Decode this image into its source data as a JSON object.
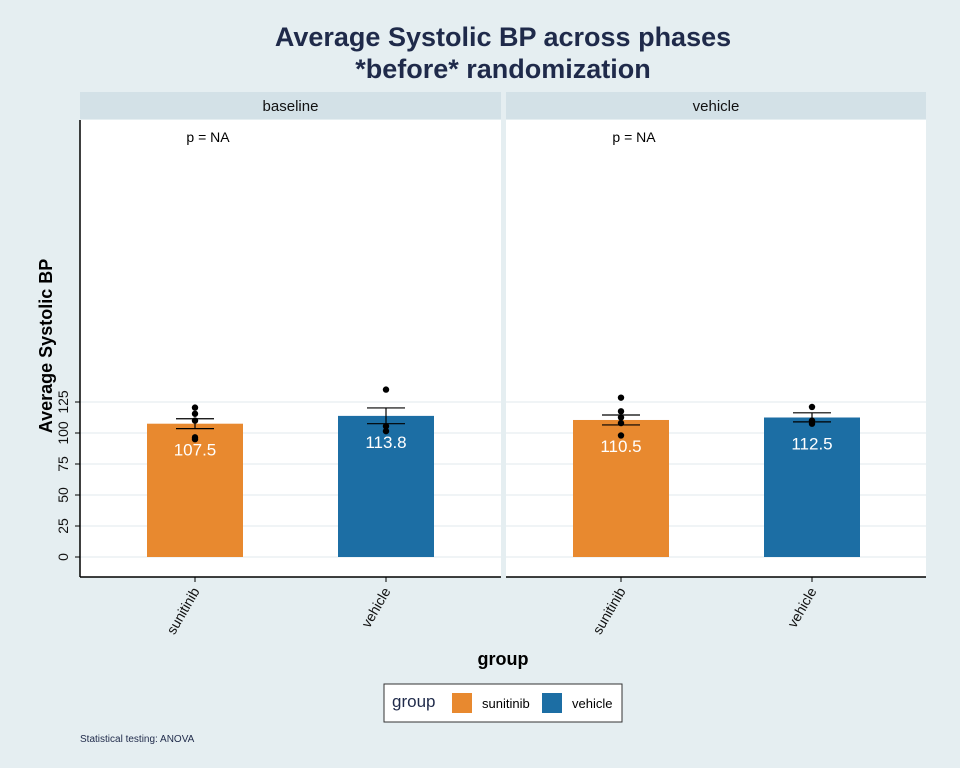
{
  "chart_data": {
    "type": "bar",
    "title_line1": "Average Systolic BP across phases",
    "title_line2": "*before* randomization",
    "xlabel": "group",
    "ylabel": "Average Systolic BP",
    "ylim": [
      0,
      140
    ],
    "yticks": [
      0,
      25,
      50,
      75,
      100,
      125
    ],
    "grid": true,
    "categories": [
      "sunitinib",
      "vehicle"
    ],
    "facets": [
      {
        "name": "baseline",
        "p_label": "p = NA",
        "bars": [
          {
            "group": "sunitinib",
            "value": 107.5,
            "label": "107.5",
            "se_low": 103.5,
            "se_high": 111.5,
            "points": [
              120.5,
              115.5,
              110,
              96.5,
              95
            ]
          },
          {
            "group": "vehicle",
            "value": 113.8,
            "label": "113.8",
            "se_low": 107.5,
            "se_high": 120.2,
            "points": [
              135,
              105.5,
              101.5
            ]
          }
        ]
      },
      {
        "name": "vehicle",
        "p_label": "p = NA",
        "bars": [
          {
            "group": "sunitinib",
            "value": 110.5,
            "label": "110.5",
            "se_low": 106.5,
            "se_high": 114.5,
            "points": [
              128.5,
              117.5,
              112.5,
              108,
              98
            ]
          },
          {
            "group": "vehicle",
            "value": 112.5,
            "label": "112.5",
            "se_low": 109,
            "se_high": 116.3,
            "points": [
              121,
              110,
              107.5
            ]
          }
        ]
      }
    ],
    "legend": {
      "title": "group",
      "position": "bottom",
      "items": [
        {
          "name": "sunitinib",
          "color": "#e8892f"
        },
        {
          "name": "vehicle",
          "color": "#1c6ea4"
        }
      ]
    },
    "caption": "Statistical testing: ANOVA"
  }
}
